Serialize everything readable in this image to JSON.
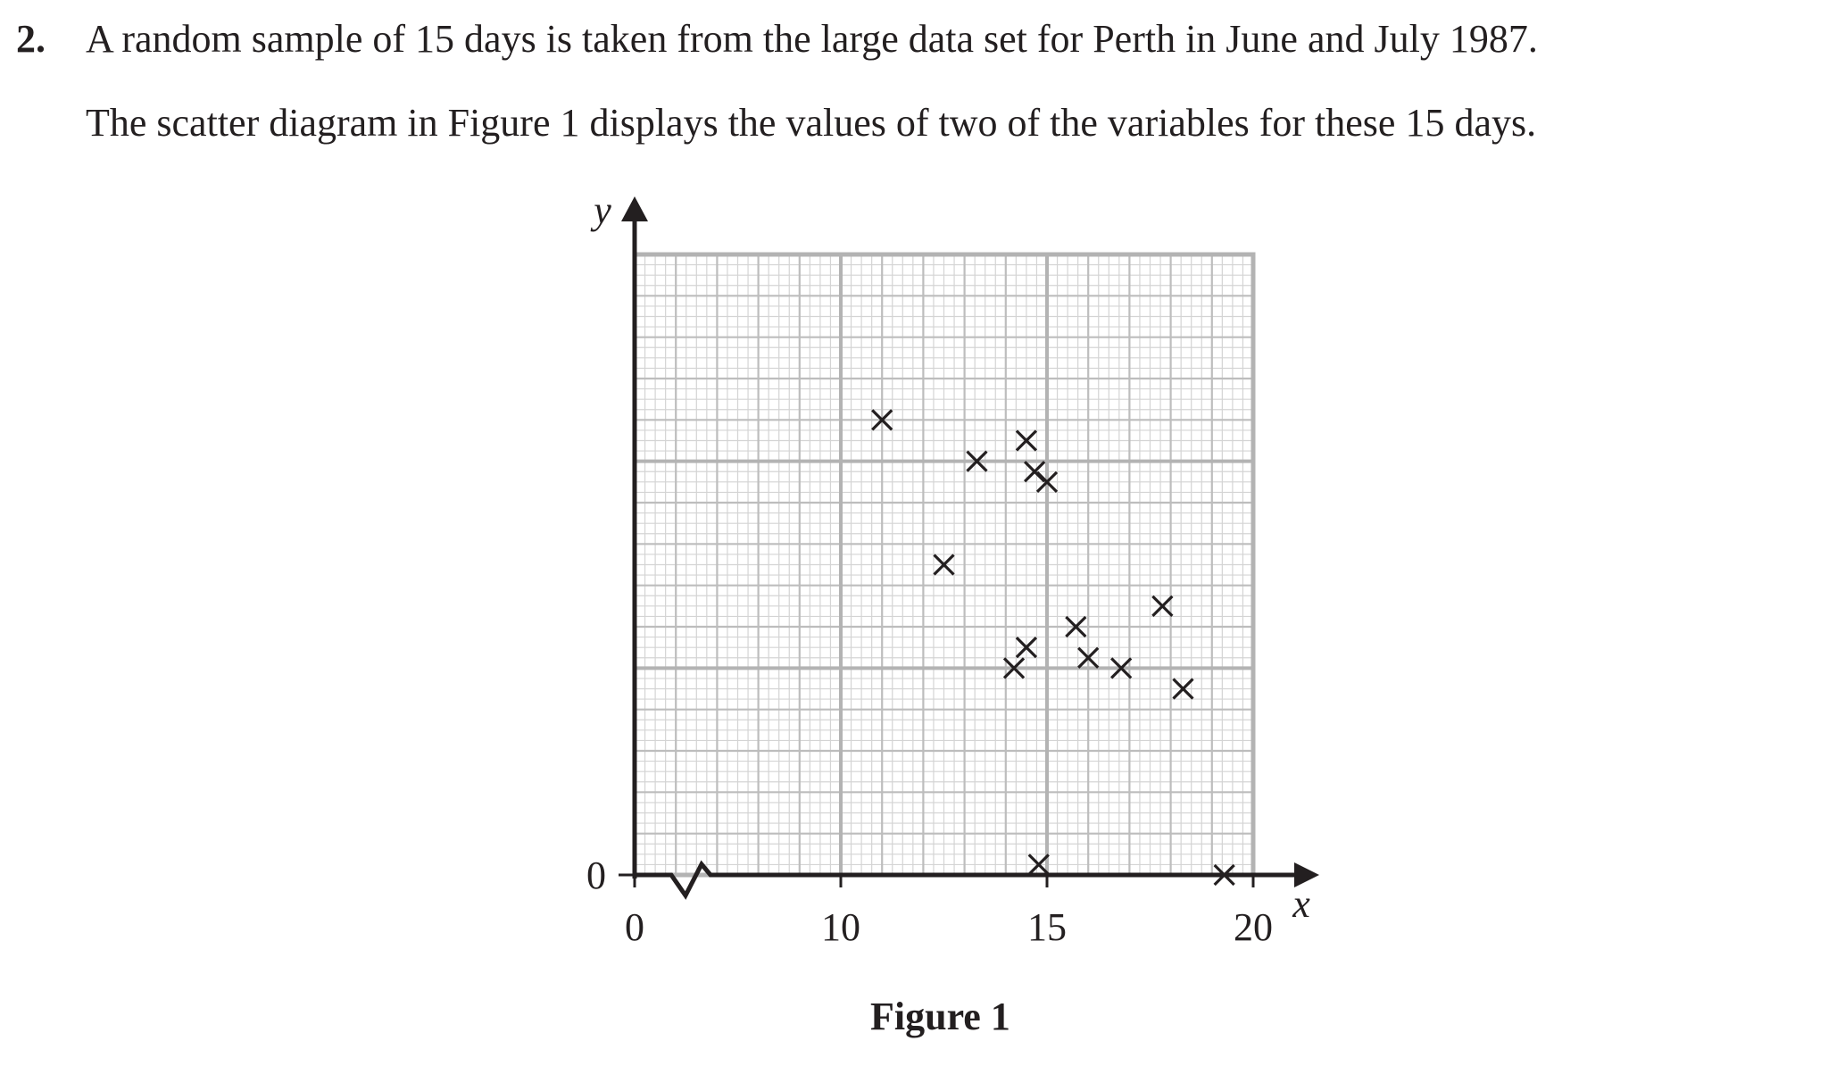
{
  "question": {
    "number": "2.",
    "line1": "A random sample of 15 days is taken from the large data set for Perth in June and July 1987.",
    "line2": "The scatter diagram in Figure 1 displays the values of two of the variables for these 15 days."
  },
  "figure": {
    "caption": "Figure 1"
  },
  "chart_data": {
    "type": "scatter",
    "title": "",
    "xlabel": "x",
    "ylabel": "y",
    "x_ticks": [
      "0",
      "10",
      "15",
      "20"
    ],
    "y_ticks": [
      "0"
    ],
    "xlim": [
      5,
      20
    ],
    "ylim": [
      0,
      30
    ],
    "x_axis_break": true,
    "grid": true,
    "marker": "cross",
    "points": [
      {
        "x": 11.0,
        "y": 22.0
      },
      {
        "x": 12.5,
        "y": 15.0
      },
      {
        "x": 13.3,
        "y": 20.0
      },
      {
        "x": 14.5,
        "y": 21.0
      },
      {
        "x": 14.7,
        "y": 19.5
      },
      {
        "x": 15.0,
        "y": 19.0
      },
      {
        "x": 14.2,
        "y": 10.0
      },
      {
        "x": 14.5,
        "y": 11.0
      },
      {
        "x": 15.7,
        "y": 12.0
      },
      {
        "x": 16.0,
        "y": 10.5
      },
      {
        "x": 16.8,
        "y": 10.0
      },
      {
        "x": 17.8,
        "y": 13.0
      },
      {
        "x": 18.3,
        "y": 9.0
      },
      {
        "x": 14.8,
        "y": 0.5
      },
      {
        "x": 19.3,
        "y": 0.0
      }
    ]
  }
}
